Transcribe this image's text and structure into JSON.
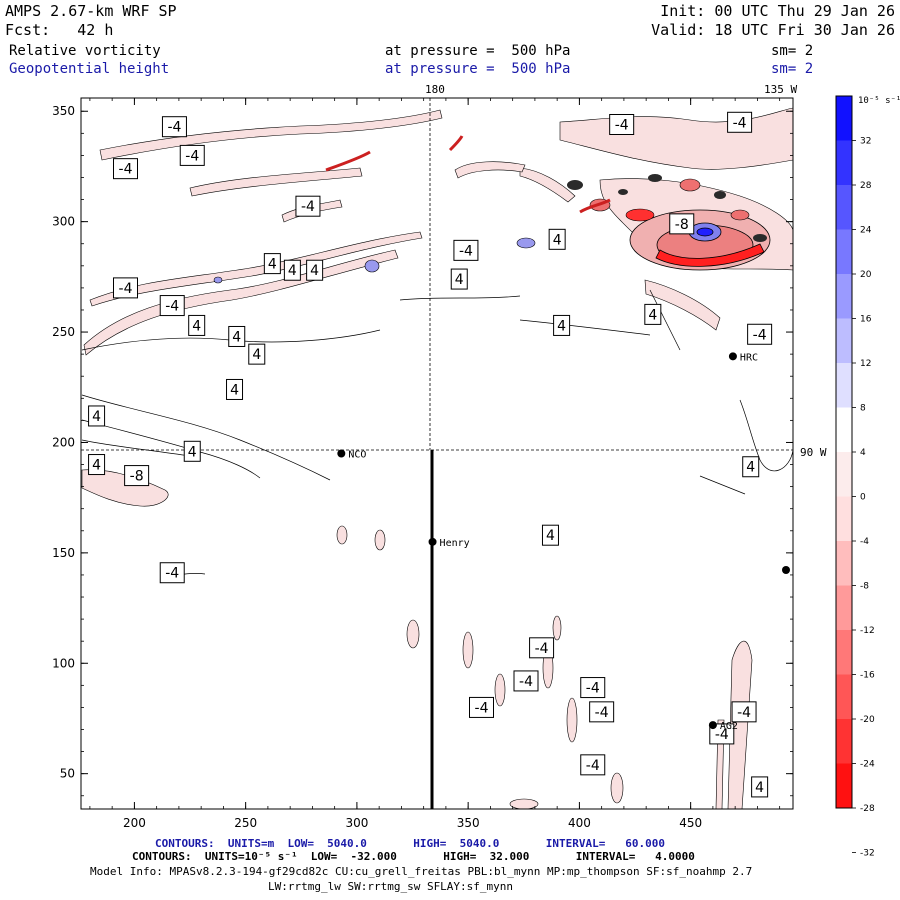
{
  "header": {
    "model": "AMPS 2.67-km WRF SP",
    "init": "Init: 00 UTC Thu 29 Jan 26",
    "fcst": "Fcst:   42 h",
    "valid": "Valid: 18 UTC Fri 30 Jan 26",
    "field1": "Relative vorticity",
    "field2": "Geopotential height",
    "pressure1": "at pressure =  500 hPa",
    "pressure2": "at pressure =  500 hPa",
    "sm1": "sm= 2",
    "sm2": "sm= 2"
  },
  "colors": {
    "accent_blue": "#1a1aa8",
    "positive": "#0000ff",
    "negative": "#ff0000",
    "contour": "#000000"
  },
  "map": {
    "lon_labels": [
      "180",
      "135 W",
      "90 W"
    ],
    "stations": [
      "NCO",
      "HRC",
      "Henry",
      "AG2"
    ],
    "contour_labels": [
      "-4",
      "4",
      "-8"
    ]
  },
  "colorbar": {
    "unit_label": "10⁻⁵ s⁻¹",
    "ticks": [
      "32",
      "28",
      "24",
      "20",
      "16",
      "12",
      "8",
      "4",
      "0",
      "-4",
      "-8",
      "-12",
      "-16",
      "-20",
      "-24",
      "-28",
      "-32"
    ]
  },
  "footer": {
    "contours1": "CONTOURS:  UNITS=m  LOW=  5040.0       HIGH=  5040.0       INTERVAL=   60.000",
    "contours2": "CONTOURS:  UNITS=10⁻⁵ s⁻¹  LOW=  -32.000       HIGH=  32.000       INTERVAL=   4.0000",
    "model_info": "Model Info: MPASv8.2.3-194-gf29cd82c CU:cu_grell_freitas PBL:bl_mynn MP:mp_thompson SF:sf_noahmp 2.7",
    "physics": "LW:rrtmg_lw SW:rrtmg_sw SFLAY:sf_mynn"
  },
  "chart_data": {
    "type": "heatmap",
    "title": "Relative vorticity / Geopotential height at pressure = 500 hPa",
    "xlabel": "",
    "ylabel": "",
    "xlim": [
      176,
      496
    ],
    "ylim": [
      34,
      356
    ],
    "x_ticks": [
      200,
      250,
      300,
      350,
      400,
      450
    ],
    "y_ticks": [
      50,
      100,
      150,
      200,
      250,
      300,
      350
    ],
    "color_levels": [
      -32,
      -28,
      -24,
      -20,
      -16,
      -12,
      -8,
      -4,
      0,
      4,
      8,
      12,
      16,
      20,
      24,
      28,
      32
    ],
    "stations": [
      {
        "name": "NCO",
        "x": 293,
        "y": 195
      },
      {
        "name": "HRC",
        "x": 469,
        "y": 239
      },
      {
        "name": "Henry",
        "x": 334,
        "y": 155
      },
      {
        "name": "AG2",
        "x": 460,
        "y": 72
      }
    ],
    "reference_lines": [
      {
        "label": "180",
        "orientation": "vertical",
        "x": 333
      },
      {
        "label": "90 W",
        "orientation": "horizontal",
        "y": 196
      }
    ],
    "vertical_bold_line": {
      "x": 334,
      "y_from": 34,
      "y_to": 196
    },
    "contour_labels": [
      {
        "text": "-4",
        "x": 218,
        "y": 343
      },
      {
        "text": "-4",
        "x": 196,
        "y": 324
      },
      {
        "text": "-4",
        "x": 226,
        "y": 330
      },
      {
        "text": "-4",
        "x": 278,
        "y": 307
      },
      {
        "text": "-4",
        "x": 419,
        "y": 344
      },
      {
        "text": "-4",
        "x": 472,
        "y": 345
      },
      {
        "text": "-4",
        "x": 349,
        "y": 287
      },
      {
        "text": "-8",
        "x": 446,
        "y": 299
      },
      {
        "text": "-4",
        "x": 196,
        "y": 270
      },
      {
        "text": "-4",
        "x": 217,
        "y": 262
      },
      {
        "text": "-4",
        "x": 481,
        "y": 249
      },
      {
        "text": "-8",
        "x": 201,
        "y": 185
      },
      {
        "text": "-4",
        "x": 217,
        "y": 141
      },
      {
        "text": "-4",
        "x": 383,
        "y": 107
      },
      {
        "text": "-4",
        "x": 376,
        "y": 92
      },
      {
        "text": "-4",
        "x": 356,
        "y": 80
      },
      {
        "text": "-4",
        "x": 406,
        "y": 89
      },
      {
        "text": "-4",
        "x": 410,
        "y": 78
      },
      {
        "text": "-4",
        "x": 406,
        "y": 54
      },
      {
        "text": "-4",
        "x": 474,
        "y": 78
      },
      {
        "text": "-4",
        "x": 464,
        "y": 68
      },
      {
        "text": "4",
        "x": 390,
        "y": 292
      },
      {
        "text": "4",
        "x": 262,
        "y": 281
      },
      {
        "text": "4",
        "x": 271,
        "y": 278
      },
      {
        "text": "4",
        "x": 281,
        "y": 278
      },
      {
        "text": "4",
        "x": 346,
        "y": 274
      },
      {
        "text": "4",
        "x": 228,
        "y": 253
      },
      {
        "text": "4",
        "x": 246,
        "y": 248
      },
      {
        "text": "4",
        "x": 255,
        "y": 240
      },
      {
        "text": "4",
        "x": 392,
        "y": 253
      },
      {
        "text": "4",
        "x": 433,
        "y": 258
      },
      {
        "text": "4",
        "x": 245,
        "y": 224
      },
      {
        "text": "4",
        "x": 183,
        "y": 212
      },
      {
        "text": "4",
        "x": 183,
        "y": 190
      },
      {
        "text": "4",
        "x": 226,
        "y": 196
      },
      {
        "text": "4",
        "x": 387,
        "y": 158
      },
      {
        "text": "4",
        "x": 477,
        "y": 189
      },
      {
        "text": "4",
        "x": 481,
        "y": 44
      }
    ]
  }
}
